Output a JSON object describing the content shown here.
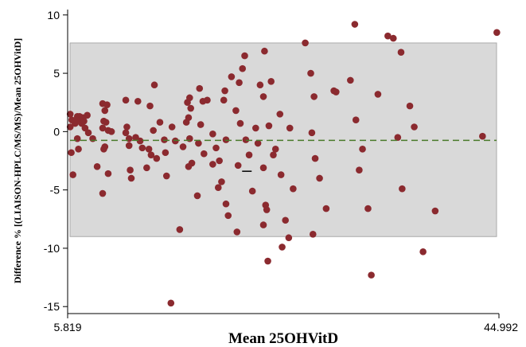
{
  "chart_data": {
    "type": "scatter",
    "xlabel": "Mean 25OHVitD",
    "ylabel": "Difference % [(LIAISON-HPLC/MS/MS)/Mean 25OHVitD]",
    "xlim": [
      5.819,
      44.992
    ],
    "ylim": [
      -15.6,
      10.6
    ],
    "x_ticks": [
      "5.819",
      "44.992"
    ],
    "y_ticks": [
      10,
      5,
      0,
      -5,
      -10,
      -15
    ],
    "limits_of_agreement": {
      "upper": 7.6,
      "lower": -9.0
    },
    "mean_difference": -0.75,
    "mean_marker": {
      "x": 22.1,
      "y": -3.4
    },
    "colors": {
      "points": "#8b2a2f",
      "band": "#d9d9d9",
      "band_border": "#aaaaaa",
      "mean_line": "#4a7a2a"
    },
    "points": [
      [
        6.05,
        1.5
      ],
      [
        6.05,
        0.4
      ],
      [
        6.15,
        -1.8
      ],
      [
        6.3,
        -3.7
      ],
      [
        6.2,
        1.0
      ],
      [
        6.4,
        0.9
      ],
      [
        6.5,
        0.7
      ],
      [
        6.7,
        1.3
      ],
      [
        6.9,
        1.3
      ],
      [
        7.0,
        1.0
      ],
      [
        7.1,
        0.7
      ],
      [
        7.2,
        1.2
      ],
      [
        6.6,
        1.0
      ],
      [
        6.8,
        -1.5
      ],
      [
        6.7,
        -0.6
      ],
      [
        7.3,
        0.9
      ],
      [
        7.6,
        1.4
      ],
      [
        7.4,
        0.3
      ],
      [
        7.7,
        -0.1
      ],
      [
        8.1,
        -0.6
      ],
      [
        8.5,
        -3.0
      ],
      [
        9.0,
        2.4
      ],
      [
        9.2,
        1.8
      ],
      [
        9.4,
        2.3
      ],
      [
        9.0,
        0.3
      ],
      [
        9.1,
        0.9
      ],
      [
        9.3,
        0.8
      ],
      [
        9.5,
        0.1
      ],
      [
        9.8,
        0.0
      ],
      [
        9.2,
        -1.3
      ],
      [
        9.1,
        -1.5
      ],
      [
        9.5,
        -3.6
      ],
      [
        9.0,
        -5.3
      ],
      [
        11.1,
        2.7
      ],
      [
        11.2,
        0.4
      ],
      [
        11.1,
        -0.1
      ],
      [
        11.4,
        -0.6
      ],
      [
        11.4,
        -1.2
      ],
      [
        11.5,
        -3.3
      ],
      [
        11.6,
        -4.0
      ],
      [
        12.2,
        2.6
      ],
      [
        12.0,
        -0.5
      ],
      [
        12.4,
        -0.8
      ],
      [
        12.6,
        -1.4
      ],
      [
        13.0,
        -3.1
      ],
      [
        13.2,
        -1.5
      ],
      [
        13.3,
        2.2
      ],
      [
        13.4,
        -2.0
      ],
      [
        13.6,
        0.1
      ],
      [
        13.7,
        4.0
      ],
      [
        13.9,
        -2.3
      ],
      [
        14.2,
        0.8
      ],
      [
        14.6,
        -0.7
      ],
      [
        14.7,
        -1.8
      ],
      [
        14.8,
        -3.8
      ],
      [
        15.3,
        0.4
      ],
      [
        15.6,
        -0.8
      ],
      [
        16.0,
        -8.4
      ],
      [
        16.3,
        -1.3
      ],
      [
        16.6,
        0.8
      ],
      [
        16.7,
        2.5
      ],
      [
        16.8,
        1.2
      ],
      [
        17.0,
        2.0
      ],
      [
        16.9,
        -0.6
      ],
      [
        17.1,
        -2.7
      ],
      [
        16.8,
        -3.0
      ],
      [
        16.9,
        2.9
      ],
      [
        15.2,
        -14.7
      ],
      [
        17.8,
        3.7
      ],
      [
        17.9,
        0.6
      ],
      [
        17.7,
        -1.0
      ],
      [
        17.6,
        -5.5
      ],
      [
        18.1,
        2.6
      ],
      [
        18.5,
        2.7
      ],
      [
        18.2,
        -1.9
      ],
      [
        19.0,
        -0.2
      ],
      [
        19.3,
        -1.4
      ],
      [
        19.6,
        -2.5
      ],
      [
        19.0,
        -2.8
      ],
      [
        19.5,
        -4.8
      ],
      [
        19.8,
        -4.3
      ],
      [
        20.1,
        3.5
      ],
      [
        20.0,
        2.7
      ],
      [
        20.2,
        -0.7
      ],
      [
        20.2,
        -6.2
      ],
      [
        20.4,
        -7.2
      ],
      [
        20.7,
        4.7
      ],
      [
        21.1,
        1.8
      ],
      [
        21.4,
        4.2
      ],
      [
        21.7,
        5.4
      ],
      [
        21.2,
        -8.6
      ],
      [
        21.3,
        -2.9
      ],
      [
        21.5,
        0.7
      ],
      [
        22.0,
        -0.7
      ],
      [
        22.3,
        -2.0
      ],
      [
        21.9,
        6.5
      ],
      [
        22.6,
        -5.1
      ],
      [
        22.9,
        0.3
      ],
      [
        23.1,
        -1.0
      ],
      [
        23.3,
        4.0
      ],
      [
        23.6,
        3.0
      ],
      [
        23.7,
        6.9
      ],
      [
        23.6,
        -3.1
      ],
      [
        23.8,
        -6.3
      ],
      [
        23.9,
        -6.7
      ],
      [
        23.6,
        -8.0
      ],
      [
        24.1,
        0.5
      ],
      [
        24.3,
        4.3
      ],
      [
        24.5,
        -2.0
      ],
      [
        24.7,
        -1.5
      ],
      [
        25.1,
        1.5
      ],
      [
        25.2,
        -3.7
      ],
      [
        25.3,
        -9.9
      ],
      [
        25.6,
        -7.6
      ],
      [
        25.9,
        -9.1
      ],
      [
        26.3,
        -4.9
      ],
      [
        24.0,
        -11.1
      ],
      [
        26.0,
        0.3
      ],
      [
        27.4,
        7.6
      ],
      [
        27.9,
        5.0
      ],
      [
        28.2,
        3.0
      ],
      [
        28.3,
        -2.3
      ],
      [
        28.0,
        -0.1
      ],
      [
        28.1,
        -8.8
      ],
      [
        28.7,
        -4.0
      ],
      [
        29.3,
        -6.6
      ],
      [
        30.0,
        3.5
      ],
      [
        30.2,
        3.4
      ],
      [
        31.5,
        4.4
      ],
      [
        31.9,
        9.2
      ],
      [
        32.0,
        1.0
      ],
      [
        32.3,
        -3.3
      ],
      [
        32.6,
        -1.5
      ],
      [
        33.1,
        -6.6
      ],
      [
        33.4,
        -12.3
      ],
      [
        34.0,
        3.2
      ],
      [
        34.9,
        8.2
      ],
      [
        35.4,
        8.0
      ],
      [
        35.8,
        -0.5
      ],
      [
        36.1,
        6.8
      ],
      [
        36.2,
        -4.9
      ],
      [
        36.9,
        2.2
      ],
      [
        37.3,
        0.4
      ],
      [
        38.1,
        -10.3
      ],
      [
        39.2,
        -6.8
      ],
      [
        43.5,
        -0.4
      ],
      [
        44.8,
        8.5
      ]
    ]
  }
}
